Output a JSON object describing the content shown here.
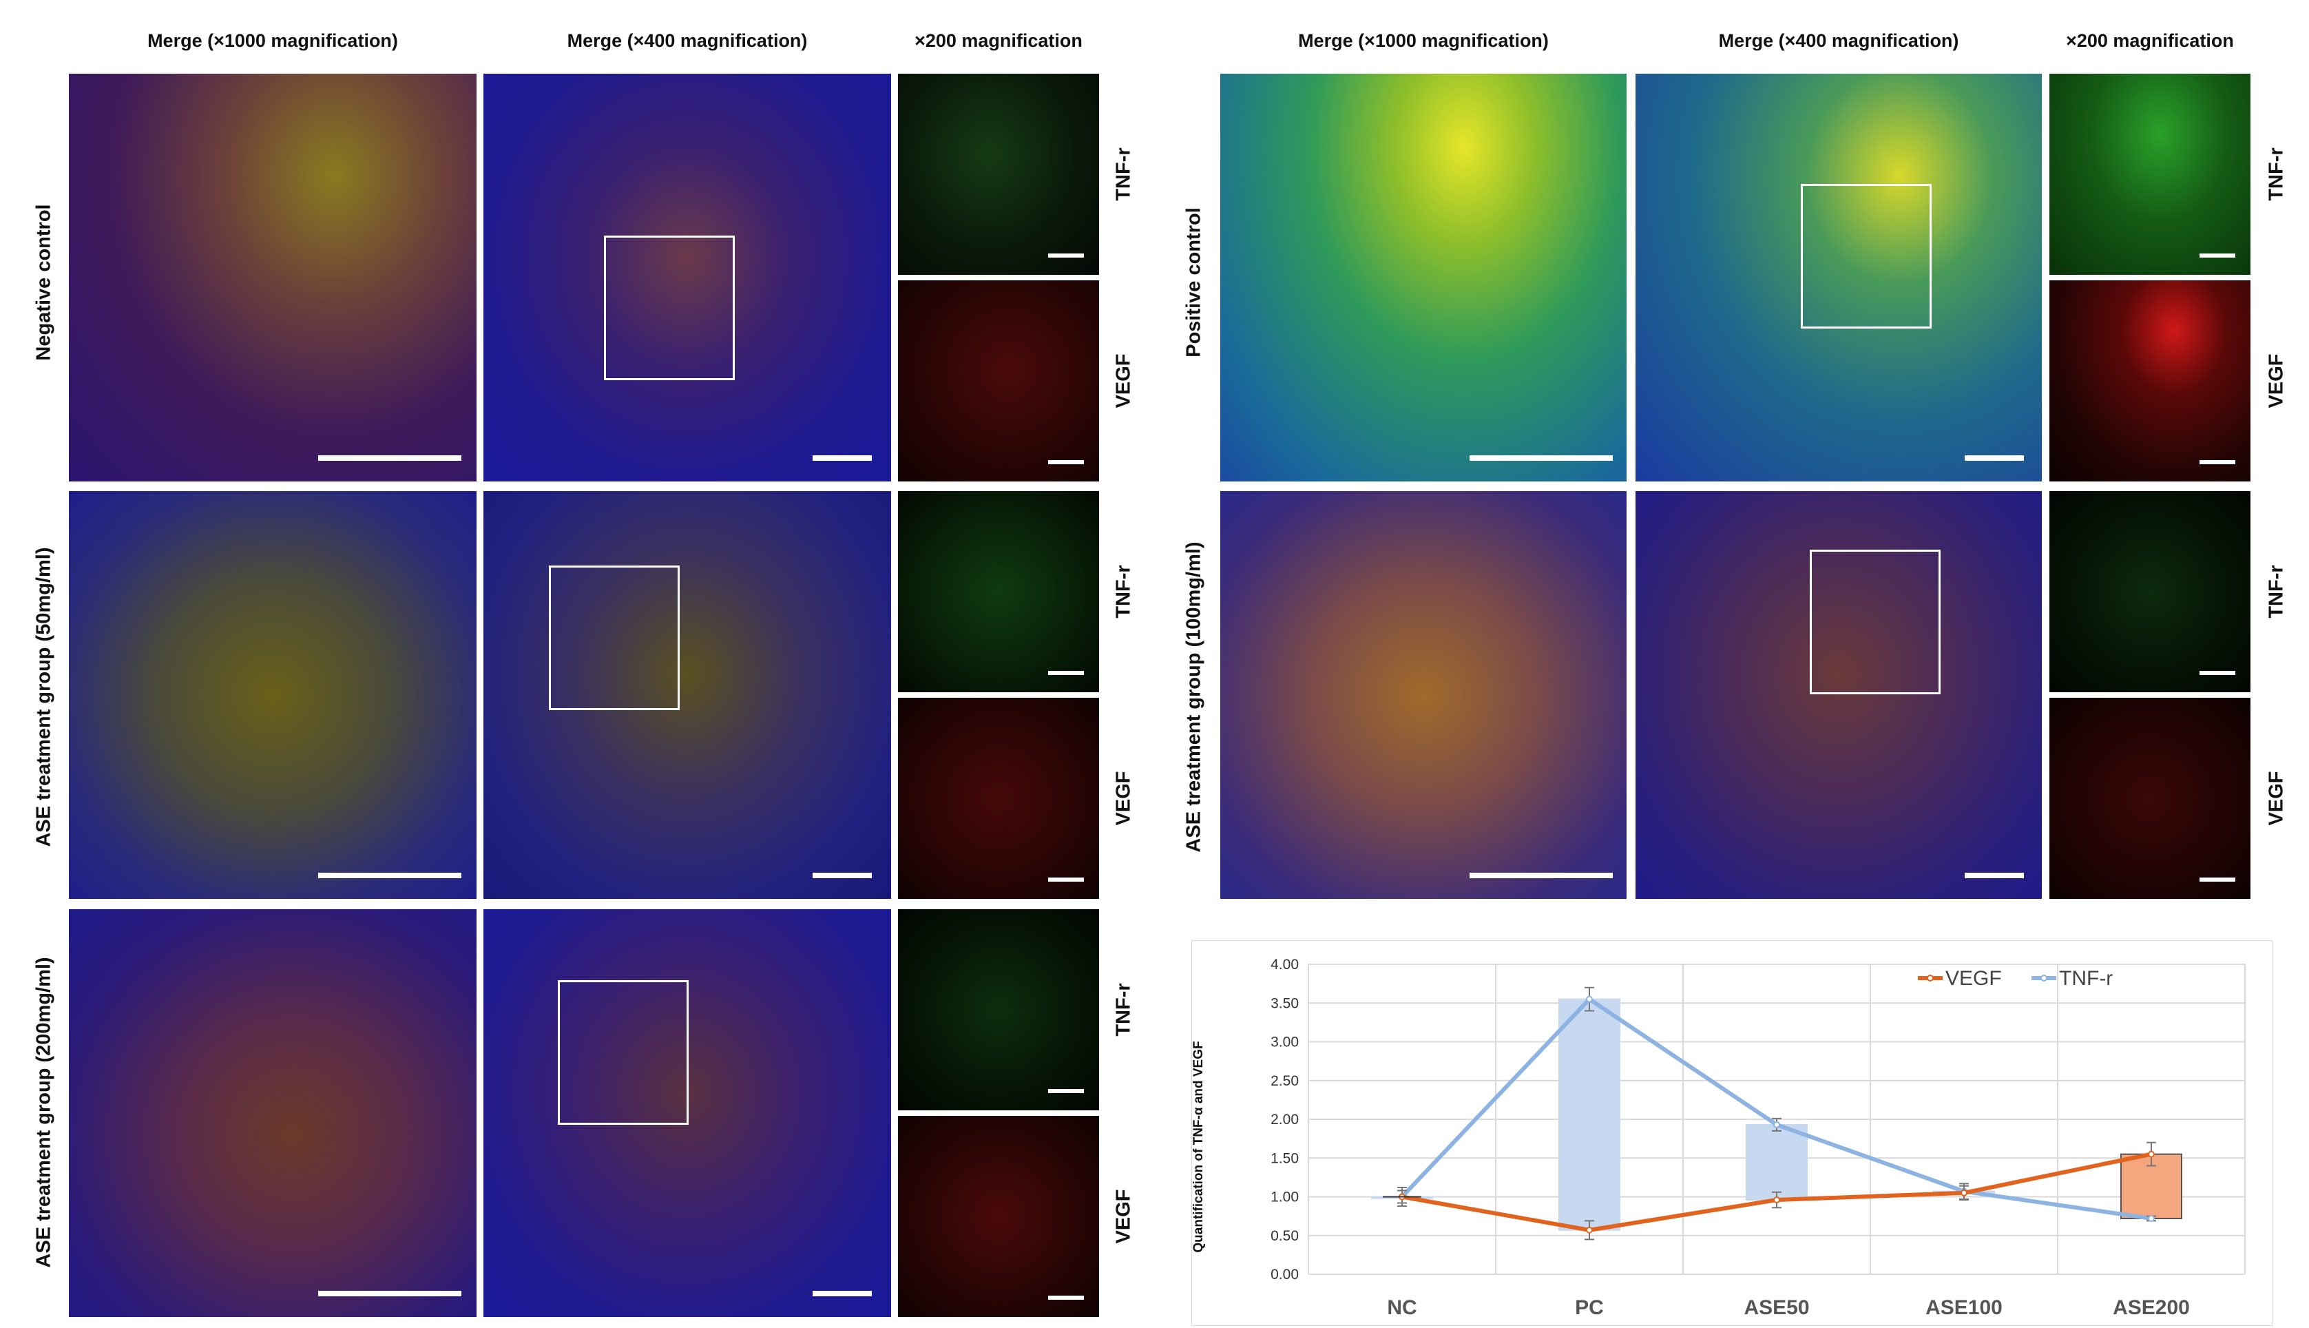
{
  "left": {
    "headers": {
      "merge1000": "Merge (×1000 magnification)",
      "merge400": "Merge (×400 magnification)",
      "mag200": "×200 magnification"
    },
    "rows": [
      {
        "label": "Negative control",
        "channels": [
          "TNF-r",
          "VEGF"
        ]
      },
      {
        "label": "ASE treatment group (50mg/ml)",
        "channels": [
          "TNF-r",
          "VEGF"
        ]
      },
      {
        "label": "ASE treatment group (200mg/ml)",
        "channels": [
          "TNF-r",
          "VEGF"
        ]
      }
    ]
  },
  "right": {
    "headers": {
      "merge1000": "Merge (×1000 magnification)",
      "merge400": "Merge (×400 magnification)",
      "mag200": "×200 magnification"
    },
    "rows": [
      {
        "label": "Positive control",
        "channels": [
          "TNF-r",
          "VEGF"
        ]
      },
      {
        "label": "ASE treatment group (100mg/ml)",
        "channels": [
          "TNF-r",
          "VEGF"
        ]
      }
    ]
  },
  "colors": {
    "vegf": "#E2631E",
    "tnf": "#8DB3E2",
    "tnf_bar": "#C6D9F1",
    "vegf_bar": "#F4A77E",
    "nuclei": "#1a2bd6"
  },
  "chart_data": {
    "type": "line",
    "ylabel": "Quantification of TNF-α and VEGF",
    "categories": [
      "NC",
      "PC",
      "ASE50",
      "ASE100",
      "ASE200"
    ],
    "ylim": [
      0,
      4
    ],
    "yticks": [
      "0.00",
      "0.50",
      "1.00",
      "1.50",
      "2.00",
      "2.50",
      "3.00",
      "3.50",
      "4.00"
    ],
    "grid": true,
    "legend": "top-right",
    "series": [
      {
        "name": "VEGF",
        "values": [
          1.0,
          0.57,
          0.96,
          1.05,
          1.55
        ],
        "errors": [
          0.08,
          0.12,
          0.1,
          0.09,
          0.15
        ]
      },
      {
        "name": "TNF-r",
        "values": [
          1.0,
          3.55,
          1.93,
          1.07,
          0.72
        ],
        "errors": [
          0.12,
          0.15,
          0.08,
          0.1,
          0.03
        ]
      }
    ]
  }
}
